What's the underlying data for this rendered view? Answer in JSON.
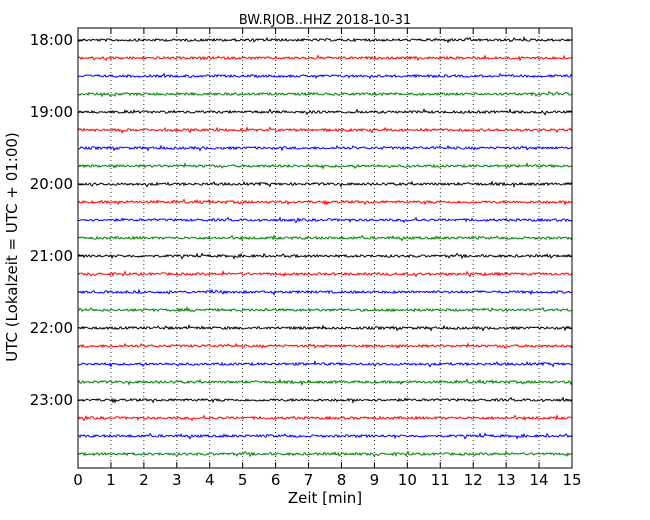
{
  "chart_data": {
    "type": "line",
    "title": "BW.RJOB..HHZ 2018-10-31",
    "xlabel": "Zeit  [min]",
    "ylabel": "UTC (Lokalzeit = UTC + 01:00)",
    "xlim": [
      0,
      15
    ],
    "x_ticks": [
      "0",
      "1",
      "2",
      "3",
      "4",
      "5",
      "6",
      "7",
      "8",
      "9",
      "10",
      "11",
      "12",
      "13",
      "14",
      "15"
    ],
    "y_ticks": [
      "18:00",
      "19:00",
      "20:00",
      "21:00",
      "22:00",
      "23:00"
    ],
    "grid": "vertical dotted lines at each minute",
    "trace_colors": [
      "#000000",
      "#ff0000",
      "#0000ff",
      "#008000"
    ],
    "trace_start_times": [
      "18:00",
      "18:15",
      "18:30",
      "18:45",
      "19:00",
      "19:15",
      "19:30",
      "19:45",
      "20:00",
      "20:15",
      "20:30",
      "20:45",
      "21:00",
      "21:15",
      "21:30",
      "21:45",
      "22:00",
      "22:15",
      "22:30",
      "22:45",
      "23:00",
      "23:15",
      "23:30",
      "23:45"
    ]
  }
}
